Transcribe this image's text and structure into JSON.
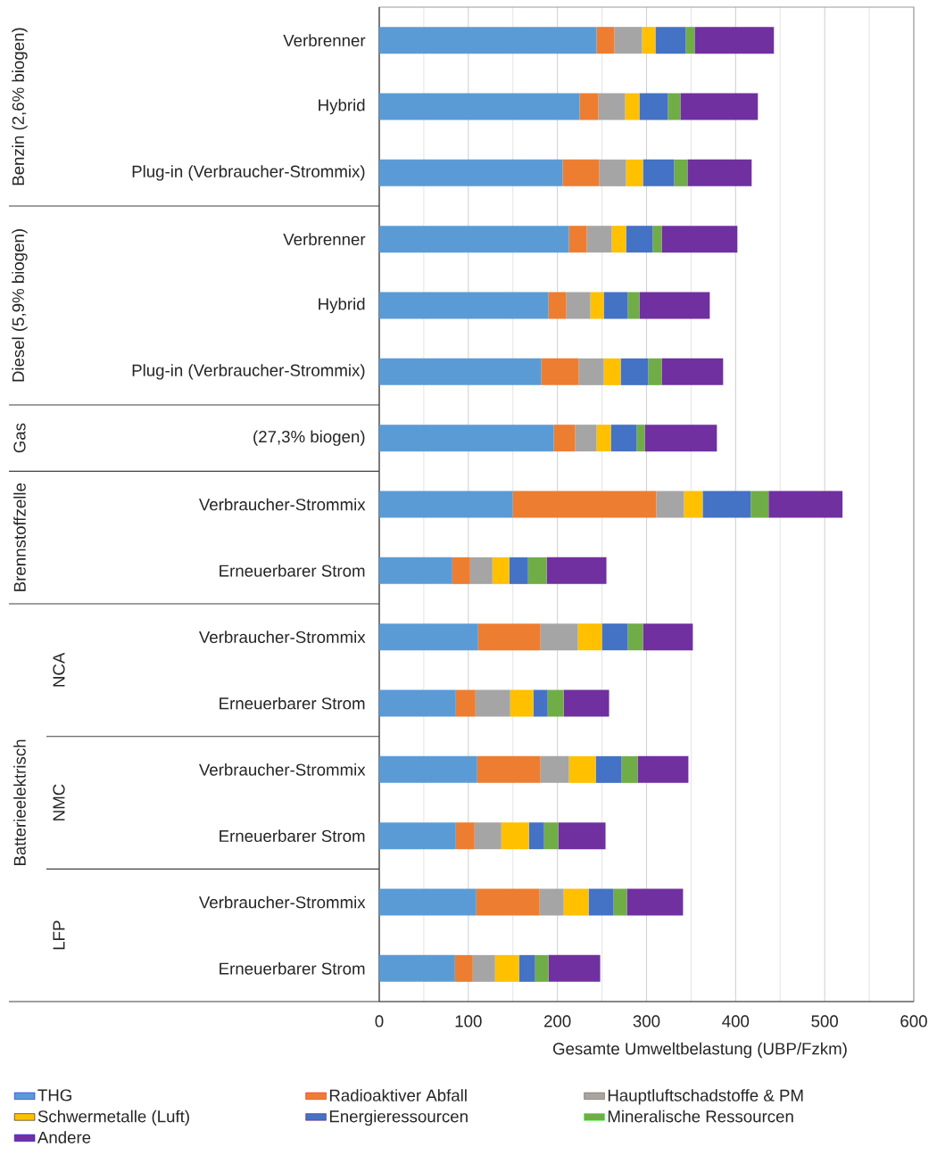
{
  "chart_data": {
    "type": "bar",
    "orientation": "horizontal",
    "stacked": true,
    "categories": [
      "Verbrenner",
      "Hybrid",
      "Plug-in (Verbraucher-Strommix)",
      "Verbrenner",
      "Hybrid",
      "Plug-in (Verbraucher-Strommix)",
      "(27,3% biogen)",
      "Verbraucher-Strommix",
      "Erneuerbarer Strom",
      "Verbraucher-Strommix",
      "Erneuerbarer Strom",
      "Verbraucher-Strommix",
      "Erneuerbarer Strom",
      "Verbraucher-Strommix",
      "Erneuerbarer Strom"
    ],
    "series": [
      {
        "name": "THG",
        "color": "#5b9bd5",
        "values": [
          244,
          225,
          206,
          213,
          190,
          182,
          196,
          150,
          82,
          111,
          86,
          110,
          86,
          109,
          85
        ]
      },
      {
        "name": "Radioaktiver Abfall",
        "color": "#ed7d31",
        "values": [
          20,
          21,
          41,
          20,
          20,
          42,
          24,
          161,
          20,
          70,
          22,
          71,
          21,
          71,
          20
        ]
      },
      {
        "name": "Hauptluftschadstoffe & PM",
        "color": "#a5a5a5",
        "values": [
          31,
          30,
          30,
          28,
          27,
          28,
          24,
          31,
          25,
          42,
          39,
          32,
          30,
          27,
          25
        ]
      },
      {
        "name": "Schwermetalle (Luft)",
        "color": "#ffc000",
        "values": [
          15,
          16,
          19,
          16,
          15,
          19,
          16,
          21,
          19,
          27,
          26,
          30,
          31,
          28,
          27
        ]
      },
      {
        "name": "Energieressourcen",
        "color": "#4472c4",
        "values": [
          34,
          32,
          35,
          30,
          27,
          31,
          29,
          54,
          21,
          29,
          16,
          29,
          17,
          28,
          18
        ]
      },
      {
        "name": "Mineralische Ressourcen",
        "color": "#70ad47",
        "values": [
          10,
          14,
          15,
          10,
          13,
          15,
          9,
          20,
          21,
          17,
          18,
          18,
          16,
          15,
          15
        ]
      },
      {
        "name": "Andere",
        "color": "#7030a0",
        "values": [
          89,
          87,
          72,
          85,
          79,
          69,
          81,
          83,
          67,
          56,
          51,
          57,
          53,
          63,
          58
        ]
      }
    ],
    "xlabel": "Gesamte Umweltbelastung  (UBP/Fzkm)",
    "xlim": [
      0,
      600
    ],
    "xticks": [
      0,
      100,
      200,
      300,
      400,
      500,
      600
    ],
    "grid": "x",
    "legend": "bottom",
    "annotations": [
      "Benzin (2,6% biogen)",
      "Diesel (5,9% biogen)",
      "Gas",
      "Brennstoffzelle",
      "Batterieelektrisch",
      "NCA",
      "NMC",
      "LFP"
    ]
  }
}
